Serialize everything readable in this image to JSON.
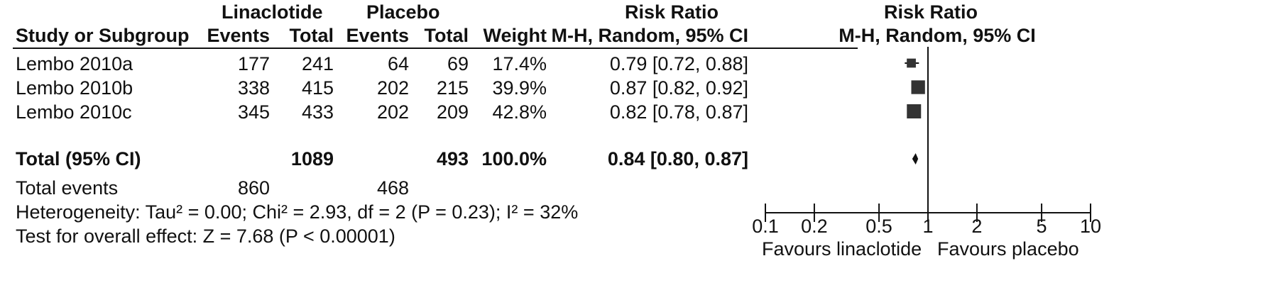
{
  "headers": {
    "group1": "Linaclotide",
    "group2": "Placebo",
    "table_rr": "Risk Ratio",
    "plot_rr": "Risk Ratio",
    "study": "Study or Subgroup",
    "events1": "Events",
    "total1": "Total",
    "events2": "Events",
    "total2": "Total",
    "weight": "Weight",
    "table_method": "M-H, Random, 95% CI",
    "plot_method": "M-H, Random, 95% CI"
  },
  "studies": [
    {
      "name": "Lembo 2010a",
      "e1": "177",
      "t1": "241",
      "e2": "64",
      "t2": "69",
      "weight": "17.4%",
      "ci_text": "0.79 [0.72, 0.88]"
    },
    {
      "name": "Lembo 2010b",
      "e1": "338",
      "t1": "415",
      "e2": "202",
      "t2": "215",
      "weight": "39.9%",
      "ci_text": "0.87 [0.82, 0.92]"
    },
    {
      "name": "Lembo 2010c",
      "e1": "345",
      "t1": "433",
      "e2": "202",
      "t2": "209",
      "weight": "42.8%",
      "ci_text": "0.82 [0.78, 0.87]"
    }
  ],
  "total": {
    "label": "Total (95% CI)",
    "t1": "1089",
    "t2": "493",
    "weight": "100.0%",
    "ci_text": "0.84 [0.80, 0.87]"
  },
  "total_events": {
    "label": "Total events",
    "e1": "860",
    "e2": "468"
  },
  "heterogeneity": "Heterogeneity: Tau² = 0.00; Chi² = 2.93, df = 2 (P = 0.23); I² = 32%",
  "overall_effect": "Test for overall effect: Z = 7.68 (P < 0.00001)",
  "axis": {
    "ticks": [
      "0.1",
      "0.2",
      "0.5",
      "1",
      "2",
      "5",
      "10"
    ],
    "favours_left": "Favours linaclotide",
    "favours_right": "Favours placebo"
  },
  "chart_data": {
    "type": "forest",
    "title": "Risk Ratio",
    "subtitle": "M-H, Random, 95% CI",
    "scale": "log",
    "xlim": [
      0.1,
      10
    ],
    "ticks": [
      0.1,
      0.2,
      0.5,
      1,
      2,
      5,
      10
    ],
    "reference_line": 1,
    "series": [
      {
        "name": "Lembo 2010a",
        "estimate": 0.79,
        "lower": 0.72,
        "upper": 0.88,
        "weight": 17.4
      },
      {
        "name": "Lembo 2010b",
        "estimate": 0.87,
        "lower": 0.82,
        "upper": 0.92,
        "weight": 39.9
      },
      {
        "name": "Lembo 2010c",
        "estimate": 0.82,
        "lower": 0.78,
        "upper": 0.87,
        "weight": 42.8
      }
    ],
    "pooled": {
      "name": "Total (95% CI)",
      "estimate": 0.84,
      "lower": 0.8,
      "upper": 0.87
    },
    "xlabel_left": "Favours linaclotide",
    "xlabel_right": "Favours placebo"
  },
  "colors": {
    "ink": "#111111",
    "marker": "#333333"
  }
}
